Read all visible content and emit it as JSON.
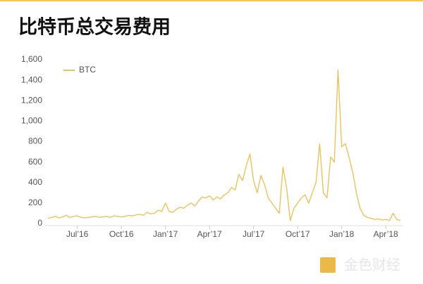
{
  "chart_data": {
    "type": "line",
    "title": "比特币总交易费用",
    "categories": [
      null,
      null,
      null,
      null,
      null,
      null,
      null,
      null,
      "Jul’16",
      null,
      null,
      null,
      null,
      null,
      null,
      null,
      null,
      null,
      null,
      null,
      "Oct’16",
      null,
      null,
      null,
      null,
      null,
      null,
      null,
      null,
      null,
      null,
      null,
      "Jan’17",
      null,
      null,
      null,
      null,
      null,
      null,
      null,
      null,
      null,
      null,
      null,
      "Apr’17",
      null,
      null,
      null,
      null,
      null,
      null,
      null,
      null,
      null,
      null,
      null,
      "Jul’17",
      null,
      null,
      null,
      null,
      null,
      null,
      null,
      null,
      null,
      null,
      null,
      "Oct’17",
      null,
      null,
      null,
      null,
      null,
      null,
      null,
      null,
      null,
      null,
      null,
      "Jan’18",
      null,
      null,
      null,
      null,
      null,
      null,
      null,
      null,
      null,
      null,
      null,
      "Apr’18",
      null,
      null,
      null,
      null
    ],
    "series": [
      {
        "name": "BTC",
        "color": "#e8c363",
        "values": [
          50,
          60,
          70,
          55,
          65,
          80,
          60,
          70,
          75,
          60,
          55,
          60,
          65,
          70,
          60,
          65,
          70,
          60,
          75,
          70,
          65,
          70,
          80,
          75,
          85,
          90,
          80,
          110,
          95,
          100,
          130,
          120,
          200,
          120,
          110,
          140,
          160,
          150,
          180,
          200,
          170,
          220,
          260,
          250,
          270,
          230,
          260,
          240,
          280,
          300,
          350,
          330,
          480,
          420,
          560,
          680,
          420,
          300,
          470,
          380,
          250,
          200,
          150,
          100,
          550,
          350,
          30,
          150,
          200,
          250,
          280,
          200,
          300,
          400,
          780,
          300,
          250,
          650,
          600,
          1500,
          750,
          780,
          650,
          500,
          300,
          150,
          80,
          60,
          50,
          40,
          45,
          35,
          40,
          30,
          100,
          40,
          30
        ]
      }
    ],
    "ylim": [
      0,
      1600
    ],
    "yticks": [
      0,
      200,
      400,
      600,
      800,
      {
        "value": 1000,
        "label": "1,000"
      },
      {
        "value": 1200,
        "label": "1,200"
      },
      {
        "value": 1400,
        "label": "1,400"
      },
      {
        "value": 1600,
        "label": "1,600"
      }
    ],
    "grid": false,
    "legend": "top-left"
  },
  "watermark": "金色财经"
}
